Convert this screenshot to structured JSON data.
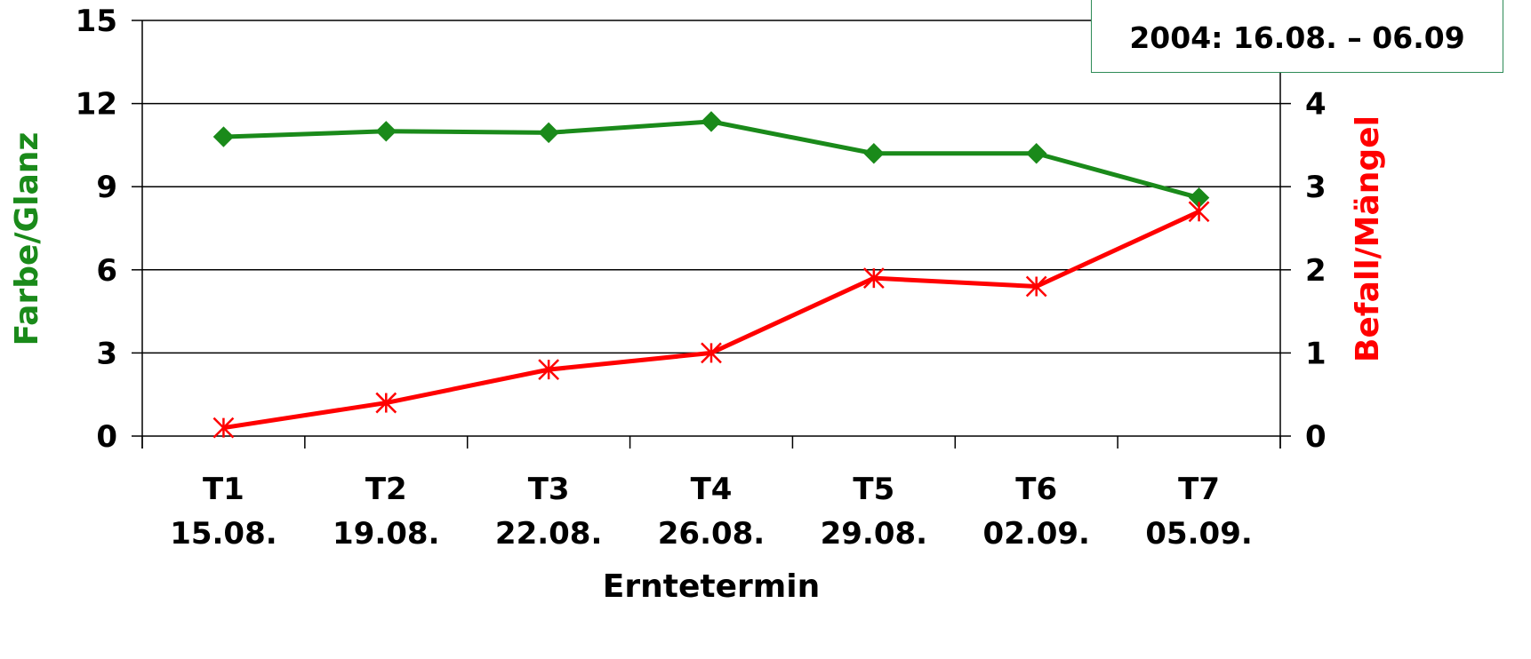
{
  "chart_data": {
    "type": "line",
    "categories": [
      [
        "T1",
        "15.08."
      ],
      [
        "T2",
        "19.08."
      ],
      [
        "T3",
        "22.08."
      ],
      [
        "T4",
        "26.08."
      ],
      [
        "T5",
        "29.08."
      ],
      [
        "T6",
        "02.09."
      ],
      [
        "T7",
        "05.09."
      ]
    ],
    "xlabel": "Erntetermin",
    "ylabel_left": "Farbe/Glanz",
    "ylabel_right": "Befall/Mängel",
    "ylim_left": [
      0,
      15
    ],
    "yticks_left": [
      0,
      3,
      6,
      9,
      12,
      15
    ],
    "ylim_right": [
      0,
      5
    ],
    "yticks_right": [
      0,
      1,
      2,
      3,
      4
    ],
    "grid": true,
    "annotation": "2004: 16.08. – 06.09",
    "series": [
      {
        "axis": "left",
        "color": "#1a8a1a",
        "marker": "diamond",
        "values": [
          10.8,
          11.0,
          10.95,
          11.35,
          10.2,
          10.2,
          8.6
        ]
      },
      {
        "axis": "right",
        "color": "#ff0000",
        "marker": "asterisk",
        "values": [
          0.1,
          0.4,
          0.8,
          1.0,
          1.9,
          1.8,
          2.7
        ]
      }
    ]
  }
}
